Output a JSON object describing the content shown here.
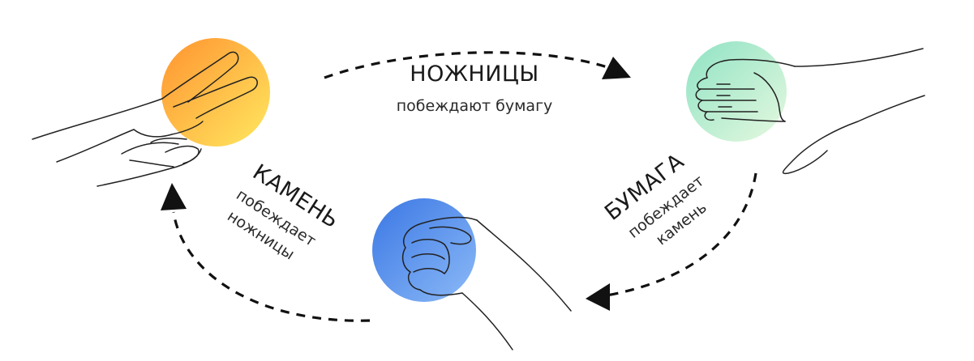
{
  "labels": {
    "scissors": {
      "title": "НОЖНИЦЫ",
      "subtitle": "побеждают бумагу"
    },
    "paper": {
      "title": "БУМАГА",
      "line1": "побеждает",
      "line2": "камень"
    },
    "rock": {
      "title": "КАМЕНЬ",
      "line1": "побеждает",
      "line2": "ножницы"
    }
  },
  "colors": {
    "scissors_gradient": [
      "#ff9a2e",
      "#ffe45c"
    ],
    "paper_gradient": [
      "#9fe6c8",
      "#e2f8e0"
    ],
    "rock_gradient": [
      "#3e7be6",
      "#86b4f6"
    ],
    "arrow": "#111111"
  }
}
